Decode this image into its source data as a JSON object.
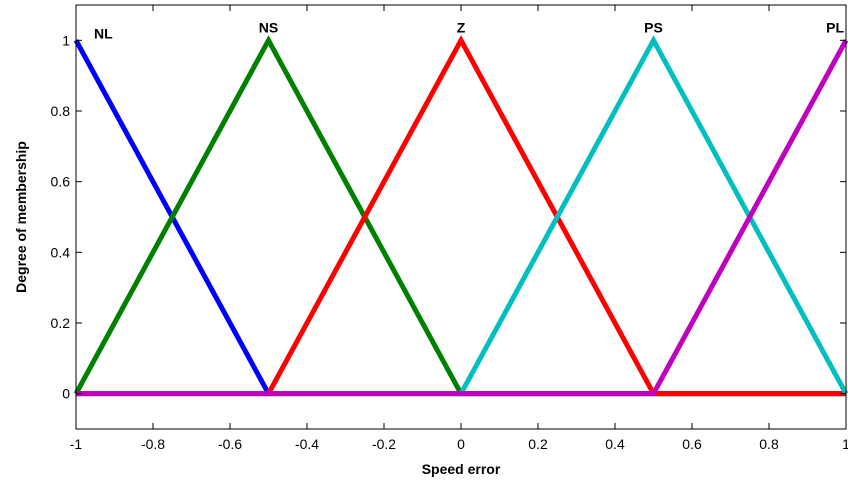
{
  "chart_data": {
    "type": "line",
    "title": "",
    "xlabel": "Speed error",
    "ylabel": "Degree of membership",
    "xlim": [
      -1,
      1
    ],
    "ylim": [
      -0.1,
      1.1
    ],
    "grid": false,
    "xticks": [
      -1,
      -0.8,
      -0.6,
      -0.4,
      -0.2,
      0,
      0.2,
      0.4,
      0.6,
      0.8,
      1
    ],
    "xtick_labels": [
      "-1",
      "-0.8",
      "-0.6",
      "-0.4",
      "-0.2",
      "0",
      "0.2",
      "0.4",
      "0.6",
      "0.8",
      "1"
    ],
    "yticks": [
      0,
      0.2,
      0.4,
      0.6,
      0.8,
      1
    ],
    "ytick_labels": [
      "0",
      "0.2",
      "0.4",
      "0.6",
      "0.8",
      "1"
    ],
    "series": [
      {
        "name": "NL",
        "color": "#0000ff",
        "x": [
          -1,
          -0.5,
          1
        ],
        "y": [
          1,
          0,
          0
        ]
      },
      {
        "name": "NS",
        "color": "#008000",
        "x": [
          -1,
          -0.5,
          0,
          1
        ],
        "y": [
          0,
          1,
          0,
          0
        ]
      },
      {
        "name": "Z",
        "color": "#ff0000",
        "x": [
          -1,
          -0.5,
          0,
          0.5,
          1
        ],
        "y": [
          0,
          0,
          1,
          0,
          0
        ]
      },
      {
        "name": "PS",
        "color": "#00bfbf",
        "x": [
          -1,
          0,
          0.5,
          1
        ],
        "y": [
          0,
          0,
          1,
          0
        ]
      },
      {
        "name": "PL",
        "color": "#bf00bf",
        "x": [
          -1,
          0.5,
          1
        ],
        "y": [
          0,
          0,
          1
        ]
      }
    ]
  }
}
